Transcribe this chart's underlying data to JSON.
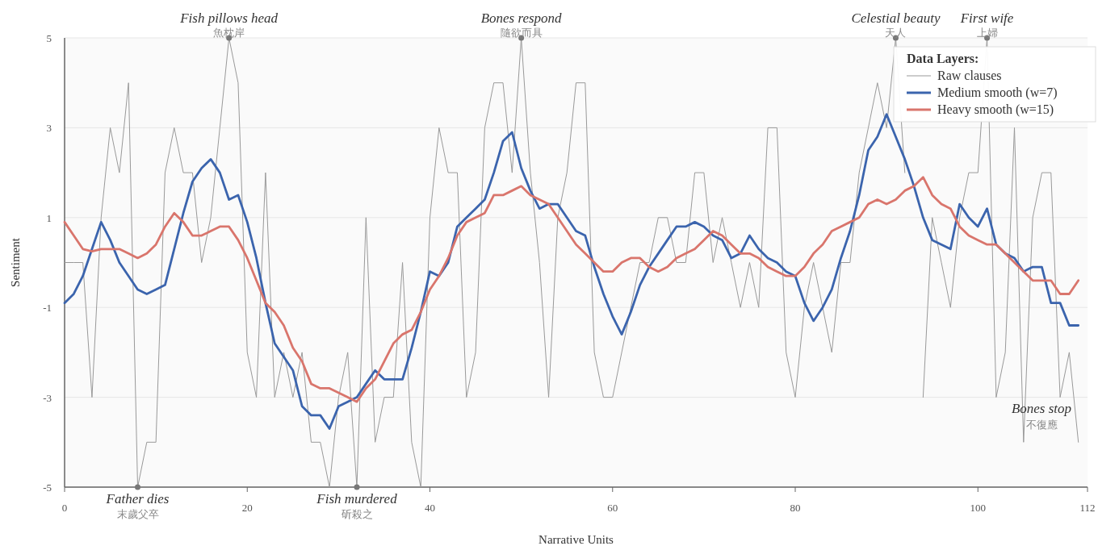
{
  "chart_data": {
    "type": "line",
    "xlabel": "Narrative Units",
    "ylabel": "Sentiment",
    "legend_title": "Data Layers:",
    "legend": "top right",
    "grid": "y",
    "xlim": [
      0,
      112
    ],
    "xticks": [
      0,
      20,
      40,
      60,
      80,
      100,
      112
    ],
    "ylim": [
      -5,
      5
    ],
    "yticks": [
      -5,
      -3,
      -1,
      1,
      3,
      5
    ],
    "x": [
      0,
      1,
      2,
      3,
      4,
      5,
      6,
      7,
      8,
      9,
      10,
      11,
      12,
      13,
      14,
      15,
      16,
      17,
      18,
      19,
      20,
      21,
      22,
      23,
      24,
      25,
      26,
      27,
      28,
      29,
      30,
      31,
      32,
      33,
      34,
      35,
      36,
      37,
      38,
      39,
      40,
      41,
      42,
      43,
      44,
      45,
      46,
      47,
      48,
      49,
      50,
      51,
      52,
      53,
      54,
      55,
      56,
      57,
      58,
      59,
      60,
      61,
      62,
      63,
      64,
      65,
      66,
      67,
      68,
      69,
      70,
      71,
      72,
      73,
      74,
      75,
      76,
      77,
      78,
      79,
      80,
      81,
      82,
      83,
      84,
      85,
      86,
      87,
      88,
      89,
      90,
      91,
      92,
      93,
      94,
      95,
      96,
      97,
      98,
      99,
      100,
      101,
      102,
      103,
      104,
      105,
      106,
      107,
      108,
      109,
      110,
      111
    ],
    "series": [
      {
        "name": "Raw clauses",
        "color": "#999999",
        "values": [
          0,
          0,
          0,
          -3,
          1,
          3,
          2,
          4,
          -5,
          -4,
          -4,
          2,
          3,
          2,
          2,
          0,
          1,
          3,
          5,
          4,
          -2,
          -3,
          2,
          -3,
          -2,
          -3,
          -2,
          -4,
          -4,
          -5,
          -3,
          -2,
          -5,
          1,
          -4,
          -3,
          -3,
          0,
          -4,
          -5,
          1,
          3,
          2,
          2,
          -3,
          -2,
          3,
          4,
          4,
          2,
          5,
          2,
          0,
          -3,
          1,
          2,
          4,
          4,
          -2,
          -3,
          -3,
          -2,
          -1,
          0,
          0,
          1,
          1,
          0,
          0,
          2,
          2,
          0,
          1,
          0,
          -1,
          0,
          -1,
          3,
          3,
          -2,
          -3,
          -1,
          0,
          -1,
          -2,
          0,
          0,
          2,
          3,
          4,
          3,
          5,
          2,
          null,
          -3,
          1,
          0,
          -1,
          1,
          2,
          2,
          5,
          -3,
          -2,
          3,
          -4,
          1,
          2,
          2,
          -3,
          -2,
          -4
        ]
      },
      {
        "name": "Medium smooth (w=7)",
        "color": "#3b64ad",
        "values": [
          -0.9,
          -0.7,
          -0.3,
          0.3,
          0.9,
          0.5,
          0,
          -0.3,
          -0.6,
          -0.7,
          -0.6,
          -0.5,
          0.3,
          1.1,
          1.8,
          2.1,
          2.3,
          2,
          1.4,
          1.5,
          0.9,
          0.1,
          -0.9,
          -1.8,
          -2.1,
          -2.4,
          -3.2,
          -3.4,
          -3.4,
          -3.7,
          -3.2,
          -3.1,
          -3,
          -2.7,
          -2.4,
          -2.6,
          -2.6,
          -2.6,
          -1.9,
          -1.1,
          -0.2,
          -0.3,
          0,
          0.8,
          1,
          1.2,
          1.4,
          2,
          2.7,
          2.9,
          2.1,
          1.6,
          1.2,
          1.3,
          1.3,
          1,
          0.7,
          0.6,
          -0.1,
          -0.7,
          -1.2,
          -1.6,
          -1.1,
          -0.5,
          -0.1,
          0.2,
          0.5,
          0.8,
          0.8,
          0.9,
          0.8,
          0.6,
          0.5,
          0.1,
          0.2,
          0.6,
          0.3,
          0.1,
          0,
          -0.2,
          -0.3,
          -0.9,
          -1.3,
          -1,
          -0.6,
          0.1,
          0.7,
          1.5,
          2.5,
          2.8,
          3.3,
          2.8,
          2.3,
          1.7,
          1,
          0.5,
          0.4,
          0.3,
          1.3,
          1,
          0.8,
          1.2,
          0.4,
          0.2,
          0.1,
          -0.2,
          -0.1,
          -0.1,
          -0.9,
          -0.9,
          -1.4,
          -1.4
        ]
      },
      {
        "name": "Heavy smooth (w=15)",
        "color": "#d9756c",
        "values": [
          0.9,
          0.6,
          0.3,
          0.25,
          0.3,
          0.3,
          0.3,
          0.2,
          0.1,
          0.2,
          0.4,
          0.8,
          1.1,
          0.9,
          0.6,
          0.6,
          0.7,
          0.8,
          0.8,
          0.5,
          0.1,
          -0.4,
          -0.9,
          -1.1,
          -1.4,
          -1.9,
          -2.2,
          -2.7,
          -2.8,
          -2.8,
          -2.9,
          -3,
          -3.1,
          -2.8,
          -2.6,
          -2.2,
          -1.8,
          -1.6,
          -1.5,
          -1.1,
          -0.6,
          -0.3,
          0.1,
          0.6,
          0.9,
          1,
          1.1,
          1.5,
          1.5,
          1.6,
          1.7,
          1.5,
          1.4,
          1.3,
          1,
          0.7,
          0.4,
          0.2,
          0,
          -0.2,
          -0.2,
          0,
          0.1,
          0.1,
          -0.1,
          -0.2,
          -0.1,
          0.1,
          0.2,
          0.3,
          0.5,
          0.7,
          0.6,
          0.4,
          0.2,
          0.2,
          0.1,
          -0.1,
          -0.2,
          -0.3,
          -0.3,
          -0.1,
          0.2,
          0.4,
          0.7,
          0.8,
          0.9,
          1,
          1.3,
          1.4,
          1.3,
          1.4,
          1.6,
          1.7,
          1.9,
          1.5,
          1.3,
          1.2,
          0.8,
          0.6,
          0.5,
          0.4,
          0.4,
          0.2,
          0,
          -0.2,
          -0.4,
          -0.4,
          -0.4,
          -0.7,
          -0.7,
          -0.4
        ]
      }
    ],
    "annotations": [
      {
        "text": "Fish pillows head\n魚枕岸",
        "x": 18,
        "y": 5
      },
      {
        "text": "Father dies\n末歲父卒",
        "x": 8,
        "y": -5
      },
      {
        "text": "Fish murdered\n斫殺之",
        "x": 32,
        "y": -5
      },
      {
        "text": "Bones respond\n隨欲而具",
        "x": 50,
        "y": 5
      },
      {
        "text": "Celestial beauty\n天人",
        "x": 91,
        "y": 5
      },
      {
        "text": "First wife\n上婦",
        "x": 101,
        "y": 5
      },
      "Bones stop\n不復應"
    ]
  }
}
